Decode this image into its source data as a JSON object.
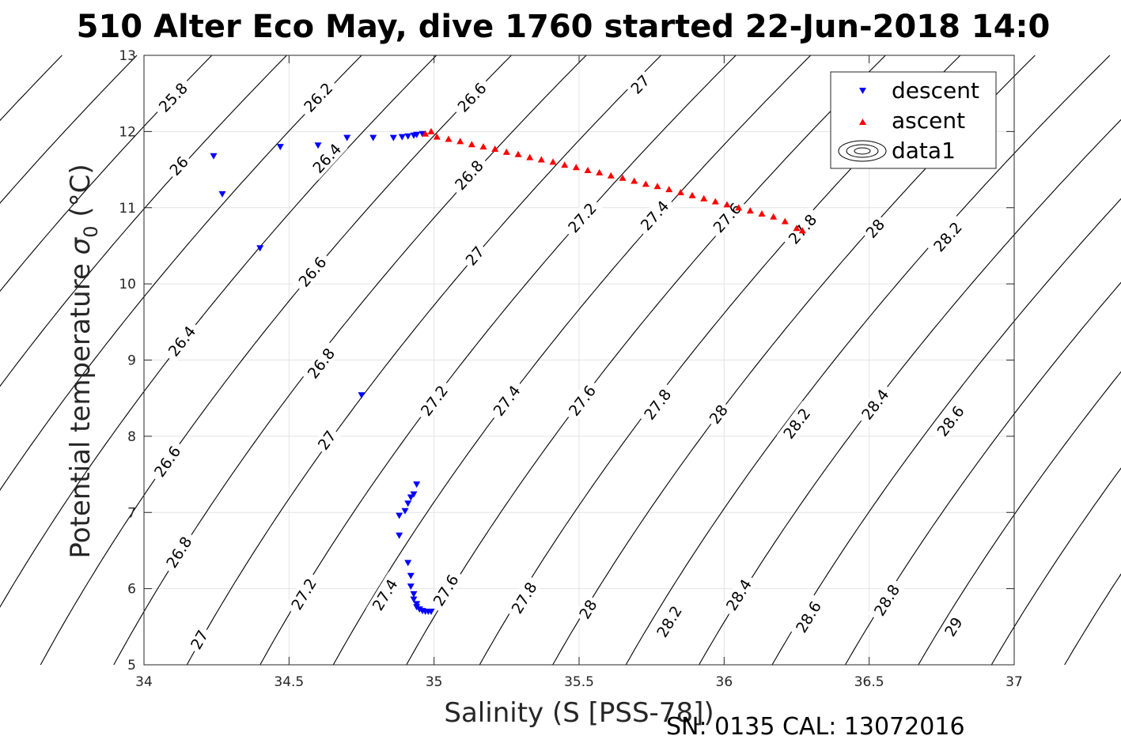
{
  "title": "510 Alter Eco May, dive 1760 started 22-Jun-2018 14:0",
  "footer": "SN: 0135  CAL: 13072016",
  "chart_data": {
    "type": "scatter",
    "xlabel": "Salinity (S [PSS-78])",
    "ylabel": "Potential temperature σ0 (°C)",
    "ylabel_main": "Potential temperature ",
    "ylabel_sym": "σ",
    "ylabel_sub": "0",
    "ylabel_unit": " (°C)",
    "xlim": [
      34,
      37
    ],
    "ylim": [
      5,
      13
    ],
    "xticks": [
      "34",
      "34.5",
      "35",
      "35.5",
      "36",
      "36.5",
      "37"
    ],
    "yticks": [
      "5",
      "6",
      "7",
      "8",
      "9",
      "10",
      "11",
      "12",
      "13"
    ],
    "grid": true,
    "legend": {
      "position": "top-right",
      "entries": [
        "descent",
        "ascent",
        "data1"
      ]
    },
    "series": [
      {
        "name": "descent",
        "marker": "triangle-down",
        "color": "#0000ff",
        "points": [
          [
            34.24,
            11.68
          ],
          [
            34.27,
            11.18
          ],
          [
            34.4,
            10.47
          ],
          [
            34.47,
            11.8
          ],
          [
            34.6,
            11.82
          ],
          [
            34.7,
            11.92
          ],
          [
            34.79,
            11.92
          ],
          [
            34.86,
            11.92
          ],
          [
            34.89,
            11.93
          ],
          [
            34.91,
            11.94
          ],
          [
            34.93,
            11.95
          ],
          [
            34.94,
            11.96
          ],
          [
            34.96,
            11.97
          ],
          [
            34.75,
            8.54
          ],
          [
            34.94,
            7.37
          ],
          [
            34.93,
            7.24
          ],
          [
            34.92,
            7.2
          ],
          [
            34.91,
            7.12
          ],
          [
            34.9,
            7.02
          ],
          [
            34.88,
            6.96
          ],
          [
            34.88,
            6.7
          ],
          [
            34.91,
            6.34
          ],
          [
            34.92,
            6.17
          ],
          [
            34.92,
            6.03
          ],
          [
            34.93,
            5.93
          ],
          [
            34.93,
            5.86
          ],
          [
            34.94,
            5.8
          ],
          [
            34.94,
            5.76
          ],
          [
            34.95,
            5.73
          ],
          [
            34.96,
            5.71
          ],
          [
            34.97,
            5.7
          ],
          [
            34.98,
            5.7
          ],
          [
            34.99,
            5.7
          ]
        ]
      },
      {
        "name": "ascent",
        "marker": "triangle-up",
        "color": "#ff0000",
        "points": [
          [
            34.97,
            11.97
          ],
          [
            34.99,
            12.0
          ],
          [
            35.01,
            11.93
          ],
          [
            35.05,
            11.9
          ],
          [
            35.09,
            11.87
          ],
          [
            35.13,
            11.83
          ],
          [
            35.17,
            11.8
          ],
          [
            35.21,
            11.77
          ],
          [
            35.25,
            11.73
          ],
          [
            35.29,
            11.7
          ],
          [
            35.33,
            11.66
          ],
          [
            35.37,
            11.63
          ],
          [
            35.41,
            11.6
          ],
          [
            35.45,
            11.56
          ],
          [
            35.49,
            11.53
          ],
          [
            35.53,
            11.49
          ],
          [
            35.57,
            11.46
          ],
          [
            35.61,
            11.42
          ],
          [
            35.65,
            11.39
          ],
          [
            35.69,
            11.35
          ],
          [
            35.73,
            11.31
          ],
          [
            35.77,
            11.28
          ],
          [
            35.81,
            11.24
          ],
          [
            35.85,
            11.2
          ],
          [
            35.89,
            11.16
          ],
          [
            35.93,
            11.12
          ],
          [
            35.97,
            11.08
          ],
          [
            36.01,
            11.04
          ],
          [
            36.05,
            11.0
          ],
          [
            36.09,
            10.96
          ],
          [
            36.13,
            10.92
          ],
          [
            36.17,
            10.88
          ],
          [
            36.21,
            10.82
          ],
          [
            36.25,
            10.73
          ],
          [
            36.27,
            10.7
          ]
        ]
      }
    ],
    "contours": {
      "levels": [
        {
          "text": "25.8",
          "label_at": [
            [
              34.1,
              12.45
            ]
          ]
        },
        {
          "text": "26",
          "label_at": [
            [
              34.12,
              11.55
            ]
          ]
        },
        {
          "text": "26.2",
          "label_at": [
            [
              34.6,
              12.45
            ]
          ]
        },
        {
          "text": "26.4",
          "label_at": [
            [
              34.63,
              11.65
            ],
            [
              34.13,
              9.25
            ]
          ]
        },
        {
          "text": "26.6",
          "label_at": [
            [
              35.13,
              12.45
            ],
            [
              34.58,
              10.16
            ],
            [
              34.08,
              7.67
            ]
          ]
        },
        {
          "text": "26.8",
          "label_at": [
            [
              35.12,
              11.43
            ],
            [
              34.61,
              8.96
            ],
            [
              34.12,
              6.48
            ]
          ]
        },
        {
          "text": "27",
          "label_at": [
            [
              35.71,
              12.62
            ],
            [
              35.14,
              10.37
            ],
            [
              34.63,
              7.95
            ],
            [
              34.19,
              5.33
            ]
          ]
        },
        {
          "text": "27.2",
          "label_at": [
            [
              35.51,
              10.87
            ],
            [
              35.0,
              8.47
            ],
            [
              34.55,
              5.93
            ]
          ]
        },
        {
          "text": "27.4",
          "label_at": [
            [
              35.76,
              10.9
            ],
            [
              35.25,
              8.47
            ],
            [
              34.83,
              5.92
            ]
          ]
        },
        {
          "text": "27.6",
          "label_at": [
            [
              36.01,
              10.87
            ],
            [
              35.51,
              8.47
            ],
            [
              35.04,
              5.98
            ]
          ]
        },
        {
          "text": "27.8",
          "label_at": [
            [
              36.27,
              10.72
            ],
            [
              35.77,
              8.42
            ],
            [
              35.31,
              5.88
            ]
          ]
        },
        {
          "text": "28",
          "label_at": [
            [
              36.52,
              10.73
            ],
            [
              35.98,
              8.29
            ],
            [
              35.53,
              5.73
            ]
          ]
        },
        {
          "text": "28.2",
          "label_at": [
            [
              36.77,
              10.62
            ],
            [
              36.25,
              8.17
            ],
            [
              35.81,
              5.57
            ]
          ]
        },
        {
          "text": "28.4",
          "label_at": [
            [
              36.52,
              8.42
            ],
            [
              36.05,
              5.92
            ]
          ]
        },
        {
          "text": "28.6",
          "label_at": [
            [
              36.78,
              8.2
            ],
            [
              36.29,
              5.63
            ]
          ]
        },
        {
          "text": "28.8",
          "label_at": [
            [
              36.56,
              5.85
            ]
          ]
        },
        {
          "text": "29",
          "label_at": [
            [
              36.79,
              5.5
            ]
          ]
        }
      ]
    }
  }
}
